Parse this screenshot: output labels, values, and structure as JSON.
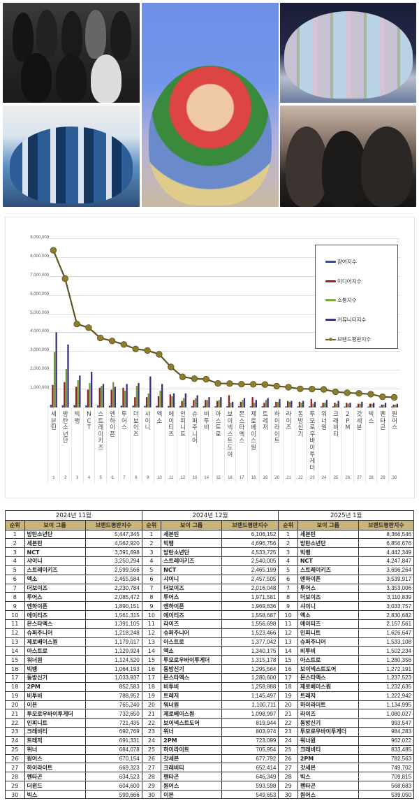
{
  "collage": {
    "photos": [
      {
        "id": "photo-top-left",
        "desc": "group photo, black leather outfits"
      },
      {
        "id": "photo-bottom-left",
        "desc": "large group in blue jackets with NEW sashes"
      },
      {
        "id": "photo-center",
        "desc": "large group waving, blue background"
      },
      {
        "id": "photo-top-right",
        "desc": "group in pastel suits on stage"
      },
      {
        "id": "photo-bottom-right",
        "desc": "selfie of three members"
      }
    ]
  },
  "colors": {
    "participation": "#2a4f9e",
    "media": "#8f1f1f",
    "communication": "#6f9a3a",
    "community": "#3b2c84",
    "brand": "#7a6d26",
    "table_header": "#c9b47b"
  },
  "chart_data": {
    "type": "bar+line",
    "title": "",
    "xlabel": "",
    "ylabel": "",
    "ylim": [
      0,
      9000000
    ],
    "y_ticks": [
      "-",
      "1,000,000",
      "2,000,000",
      "3,000,000",
      "4,000,000",
      "5,000,000",
      "6,000,000",
      "7,000,000",
      "8,000,000",
      "9,000,000"
    ],
    "grid": true,
    "legend_position": "right",
    "legend": [
      "참여지수",
      "미디어지수",
      "소통지수",
      "커뮤니티지수",
      "브랜드평판지수"
    ],
    "categories": [
      "세븐틴",
      "방탄소년단",
      "빅뱅",
      "NCT",
      "스트레이키즈",
      "엔하이픈",
      "투어스",
      "더보이즈",
      "샤이니",
      "엑소",
      "에이티즈",
      "인피니트",
      "슈퍼주니어",
      "비투비",
      "아스트로",
      "보이넥스트도어",
      "몬스타엑스",
      "제로베이스원",
      "트레저",
      "하이라이트",
      "라이즈",
      "동방신기",
      "투모로우바이투게더",
      "워너원",
      "크래비티",
      "2PM",
      "갓세븐",
      "빅스",
      "펜타곤",
      "원어스"
    ],
    "x_numbers": [
      "1",
      "2",
      "3",
      "4",
      "5",
      "6",
      "7",
      "8",
      "9",
      "10",
      "11",
      "12",
      "13",
      "14",
      "15",
      "16",
      "17",
      "18",
      "19",
      "20",
      "21",
      "22",
      "23",
      "24",
      "25",
      "26",
      "27",
      "28",
      "29",
      "30"
    ],
    "series": [
      {
        "name": "참여지수",
        "type": "bar",
        "values": [
          150000,
          120000,
          130000,
          110000,
          110000,
          100000,
          100000,
          100000,
          90000,
          90000,
          80000,
          80000,
          80000,
          80000,
          70000,
          70000,
          70000,
          70000,
          70000,
          70000,
          60000,
          60000,
          60000,
          60000,
          60000,
          50000,
          50000,
          50000,
          50000,
          50000
        ]
      },
      {
        "name": "미디어지수",
        "type": "bar",
        "values": [
          1200000,
          1350000,
          1100000,
          950000,
          1050000,
          950000,
          1050000,
          550000,
          550000,
          600000,
          700000,
          350000,
          400000,
          400000,
          350000,
          650000,
          300000,
          550000,
          250000,
          300000,
          350000,
          300000,
          450000,
          250000,
          250000,
          250000,
          200000,
          200000,
          150000,
          150000
        ]
      },
      {
        "name": "소통지수",
        "type": "bar",
        "values": [
          2950000,
          2050000,
          1450000,
          1300000,
          1150000,
          1350000,
          900000,
          1150000,
          750000,
          900000,
          600000,
          500000,
          500000,
          400000,
          400000,
          250000,
          400000,
          250000,
          400000,
          300000,
          300000,
          250000,
          200000,
          250000,
          200000,
          200000,
          200000,
          200000,
          150000,
          150000
        ]
      },
      {
        "name": "커뮤니티지수",
        "type": "bar",
        "values": [
          4000000,
          3350000,
          1700000,
          1900000,
          1250000,
          1100000,
          1250000,
          1300000,
          1650000,
          1250000,
          750000,
          750000,
          650000,
          550000,
          550000,
          300000,
          500000,
          400000,
          500000,
          450000,
          350000,
          350000,
          300000,
          400000,
          350000,
          250000,
          300000,
          250000,
          250000,
          200000
        ]
      },
      {
        "name": "브랜드평판지수",
        "type": "line",
        "values": [
          8366546,
          6856676,
          4442349,
          4247847,
          3696264,
          3539917,
          3353006,
          3110839,
          3033757,
          2830682,
          2157561,
          1626647,
          1533108,
          1502234,
          1280356,
          1272191,
          1237523,
          1232635,
          1222942,
          1134995,
          1080027,
          993547,
          984283,
          962022,
          833485,
          782563,
          749702,
          709815,
          568683,
          539050
        ]
      }
    ]
  },
  "tables": {
    "col_rank": "순위",
    "col_group": "보이 그룹",
    "col_score": "브랜드평판지수",
    "months": [
      {
        "title": "2024년 11월",
        "rows": [
          {
            "rank": "1",
            "name": "방탄소년단",
            "score": "5,447,345"
          },
          {
            "rank": "2",
            "name": "세븐틴",
            "score": "4,562,920"
          },
          {
            "rank": "3",
            "name": "NCT",
            "score": "3,391,698"
          },
          {
            "rank": "4",
            "name": "샤이니",
            "score": "3,250,294"
          },
          {
            "rank": "5",
            "name": "스트레이키즈",
            "score": "2,599,566"
          },
          {
            "rank": "6",
            "name": "엑소",
            "score": "2,455,584"
          },
          {
            "rank": "7",
            "name": "더보이즈",
            "score": "2,230,784"
          },
          {
            "rank": "8",
            "name": "투어스",
            "score": "2,085,472"
          },
          {
            "rank": "9",
            "name": "엔하이픈",
            "score": "1,890,151"
          },
          {
            "rank": "10",
            "name": "에이티즈",
            "score": "1,561,315"
          },
          {
            "rank": "11",
            "name": "몬스타엑스",
            "score": "1,391,105"
          },
          {
            "rank": "12",
            "name": "슈퍼주니어",
            "score": "1,218,248"
          },
          {
            "rank": "13",
            "name": "제로베이스원",
            "score": "1,179,017"
          },
          {
            "rank": "14",
            "name": "아스트로",
            "score": "1,129,924"
          },
          {
            "rank": "15",
            "name": "워너원",
            "score": "1,124,520"
          },
          {
            "rank": "16",
            "name": "빅뱅",
            "score": "1,064,193"
          },
          {
            "rank": "17",
            "name": "동방신기",
            "score": "1,033,937"
          },
          {
            "rank": "18",
            "name": "2PM",
            "score": "852,583"
          },
          {
            "rank": "19",
            "name": "비투비",
            "score": "788,952"
          },
          {
            "rank": "20",
            "name": "이븐",
            "score": "765,240"
          },
          {
            "rank": "21",
            "name": "투모로우바이투게더",
            "score": "732,650"
          },
          {
            "rank": "22",
            "name": "인피니트",
            "score": "721,435"
          },
          {
            "rank": "23",
            "name": "크래비티",
            "score": "692,769"
          },
          {
            "rank": "24",
            "name": "트레저",
            "score": "691,331"
          },
          {
            "rank": "25",
            "name": "위너",
            "score": "684,078"
          },
          {
            "rank": "26",
            "name": "원어스",
            "score": "670,154"
          },
          {
            "rank": "27",
            "name": "하이라이트",
            "score": "669,323"
          },
          {
            "rank": "28",
            "name": "펜타곤",
            "score": "634,523"
          },
          {
            "rank": "29",
            "name": "더윈드",
            "score": "604,600"
          },
          {
            "rank": "30",
            "name": "빅스",
            "score": "599,666"
          }
        ]
      },
      {
        "title": "2024년 12월",
        "rows": [
          {
            "rank": "1",
            "name": "세븐틴",
            "score": "6,106,152"
          },
          {
            "rank": "2",
            "name": "빅뱅",
            "score": "4,696,756"
          },
          {
            "rank": "3",
            "name": "방탄소년단",
            "score": "4,533,725"
          },
          {
            "rank": "4",
            "name": "스트레이키즈",
            "score": "2,540,005"
          },
          {
            "rank": "5",
            "name": "NCT",
            "score": "2,465,199"
          },
          {
            "rank": "6",
            "name": "샤이니",
            "score": "2,457,505"
          },
          {
            "rank": "7",
            "name": "더보이즈",
            "score": "2,016,048"
          },
          {
            "rank": "8",
            "name": "투어스",
            "score": "1,971,581"
          },
          {
            "rank": "9",
            "name": "엔하이픈",
            "score": "1,969,836"
          },
          {
            "rank": "10",
            "name": "에이티즈",
            "score": "1,558,687"
          },
          {
            "rank": "11",
            "name": "라이즈",
            "score": "1,556,698"
          },
          {
            "rank": "12",
            "name": "슈퍼주니어",
            "score": "1,523,466"
          },
          {
            "rank": "13",
            "name": "아스트로",
            "score": "1,377,042"
          },
          {
            "rank": "14",
            "name": "엑소",
            "score": "1,340,175"
          },
          {
            "rank": "15",
            "name": "투모로우바이투게더",
            "score": "1,315,178"
          },
          {
            "rank": "16",
            "name": "동방신기",
            "score": "1,295,564"
          },
          {
            "rank": "17",
            "name": "몬스타엑스",
            "score": "1,280,600"
          },
          {
            "rank": "18",
            "name": "비투비",
            "score": "1,258,888"
          },
          {
            "rank": "19",
            "name": "트레저",
            "score": "1,145,497"
          },
          {
            "rank": "20",
            "name": "워너원",
            "score": "1,100,711"
          },
          {
            "rank": "21",
            "name": "제로베이스원",
            "score": "1,098,997"
          },
          {
            "rank": "22",
            "name": "보이넥스트도어",
            "score": "819,944"
          },
          {
            "rank": "23",
            "name": "위너",
            "score": "803,974"
          },
          {
            "rank": "24",
            "name": "2PM",
            "score": "723,099"
          },
          {
            "rank": "25",
            "name": "하이라이트",
            "score": "705,954"
          },
          {
            "rank": "26",
            "name": "갓세븐",
            "score": "677,792"
          },
          {
            "rank": "27",
            "name": "크래비티",
            "score": "652,414"
          },
          {
            "rank": "28",
            "name": "펜타곤",
            "score": "646,349"
          },
          {
            "rank": "29",
            "name": "원어스",
            "score": "593,598"
          },
          {
            "rank": "30",
            "name": "이븐",
            "score": "549,653"
          }
        ]
      },
      {
        "title": "2025년 1월",
        "rows": [
          {
            "rank": "1",
            "name": "세븐틴",
            "score": "8,366,546"
          },
          {
            "rank": "2",
            "name": "방탄소년단",
            "score": "6,856,676"
          },
          {
            "rank": "3",
            "name": "빅뱅",
            "score": "4,442,349"
          },
          {
            "rank": "4",
            "name": "NCT",
            "score": "4,247,847"
          },
          {
            "rank": "5",
            "name": "스트레이키즈",
            "score": "3,696,264"
          },
          {
            "rank": "6",
            "name": "엔하이픈",
            "score": "3,539,917"
          },
          {
            "rank": "7",
            "name": "투어스",
            "score": "3,353,006"
          },
          {
            "rank": "8",
            "name": "더보이즈",
            "score": "3,110,839"
          },
          {
            "rank": "9",
            "name": "샤이니",
            "score": "3,033,757"
          },
          {
            "rank": "10",
            "name": "엑소",
            "score": "2,830,682"
          },
          {
            "rank": "11",
            "name": "에이티즈",
            "score": "2,157,561"
          },
          {
            "rank": "12",
            "name": "인피니트",
            "score": "1,626,647"
          },
          {
            "rank": "13",
            "name": "슈퍼주니어",
            "score": "1,533,108"
          },
          {
            "rank": "14",
            "name": "비투비",
            "score": "1,502,234"
          },
          {
            "rank": "15",
            "name": "아스트로",
            "score": "1,280,356"
          },
          {
            "rank": "16",
            "name": "보이넥스트도어",
            "score": "1,272,191"
          },
          {
            "rank": "17",
            "name": "몬스타엑스",
            "score": "1,237,523"
          },
          {
            "rank": "18",
            "name": "제로베이스원",
            "score": "1,232,635"
          },
          {
            "rank": "19",
            "name": "트레저",
            "score": "1,222,942"
          },
          {
            "rank": "20",
            "name": "하이라이트",
            "score": "1,134,995"
          },
          {
            "rank": "21",
            "name": "라이즈",
            "score": "1,080,027"
          },
          {
            "rank": "22",
            "name": "동방신기",
            "score": "993,547"
          },
          {
            "rank": "23",
            "name": "투모로우바이투게더",
            "score": "984,283"
          },
          {
            "rank": "24",
            "name": "워너원",
            "score": "962,022"
          },
          {
            "rank": "25",
            "name": "크래비티",
            "score": "833,485"
          },
          {
            "rank": "26",
            "name": "2PM",
            "score": "782,563"
          },
          {
            "rank": "27",
            "name": "갓세븐",
            "score": "749,702"
          },
          {
            "rank": "28",
            "name": "빅스",
            "score": "709,815"
          },
          {
            "rank": "29",
            "name": "펜타곤",
            "score": "568,683"
          },
          {
            "rank": "30",
            "name": "원어스",
            "score": "539,050"
          }
        ]
      }
    ]
  }
}
